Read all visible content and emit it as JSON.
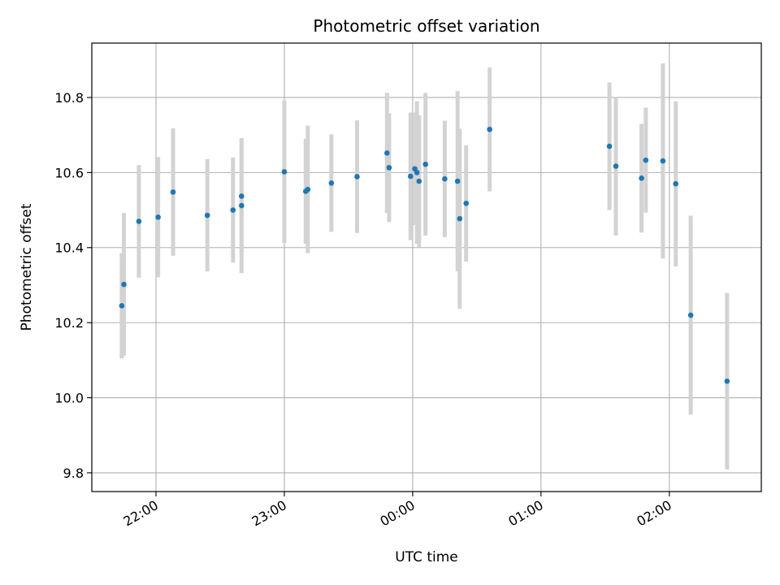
{
  "chart_data": {
    "type": "scatter",
    "title": "Photometric offset variation",
    "xlabel": "UTC time",
    "ylabel": "Photometric offset",
    "x_axis": "time",
    "xlim": [
      "21:30",
      "02:43"
    ],
    "ylim": [
      9.75,
      10.945
    ],
    "xticks": [
      "22:00",
      "23:00",
      "00:00",
      "01:00",
      "02:00"
    ],
    "yticks": [
      "9.8",
      "10.0",
      "10.2",
      "10.4",
      "10.6",
      "10.8"
    ],
    "grid": true,
    "legend": "none",
    "marker_color": "#1f77b4",
    "errorbar_color": "#d3d3d3",
    "points": [
      {
        "time": "21:44",
        "y": 10.245,
        "err": 0.14
      },
      {
        "time": "21:45",
        "y": 10.302,
        "err": 0.19
      },
      {
        "time": "21:52",
        "y": 10.47,
        "err": 0.15
      },
      {
        "time": "22:01",
        "y": 10.481,
        "err": 0.16
      },
      {
        "time": "22:08",
        "y": 10.548,
        "err": 0.17
      },
      {
        "time": "22:24",
        "y": 10.486,
        "err": 0.15
      },
      {
        "time": "22:36",
        "y": 10.5,
        "err": 0.14
      },
      {
        "time": "22:40",
        "y": 10.512,
        "err": 0.18
      },
      {
        "time": "22:40",
        "y": 10.537,
        "err": 0.15
      },
      {
        "time": "23:00",
        "y": 10.602,
        "err": 0.19
      },
      {
        "time": "23:10",
        "y": 10.55,
        "err": 0.14
      },
      {
        "time": "23:11",
        "y": 10.555,
        "err": 0.17
      },
      {
        "time": "23:22",
        "y": 10.572,
        "err": 0.13
      },
      {
        "time": "23:34",
        "y": 10.589,
        "err": 0.15
      },
      {
        "time": "23:48",
        "y": 10.652,
        "err": 0.16
      },
      {
        "time": "23:49",
        "y": 10.613,
        "err": 0.145
      },
      {
        "time": "23:59",
        "y": 10.59,
        "err": 0.17
      },
      {
        "time": "00:01",
        "y": 10.61,
        "err": 0.15
      },
      {
        "time": "00:02",
        "y": 10.6,
        "err": 0.19
      },
      {
        "time": "00:03",
        "y": 10.577,
        "err": 0.175
      },
      {
        "time": "00:06",
        "y": 10.622,
        "err": 0.19
      },
      {
        "time": "00:15",
        "y": 10.583,
        "err": 0.155
      },
      {
        "time": "00:21",
        "y": 10.577,
        "err": 0.24
      },
      {
        "time": "00:22",
        "y": 10.477,
        "err": 0.24
      },
      {
        "time": "00:25",
        "y": 10.518,
        "err": 0.155
      },
      {
        "time": "00:36",
        "y": 10.715,
        "err": 0.165
      },
      {
        "time": "01:32",
        "y": 10.67,
        "err": 0.17
      },
      {
        "time": "01:35",
        "y": 10.617,
        "err": 0.185
      },
      {
        "time": "01:47",
        "y": 10.585,
        "err": 0.145
      },
      {
        "time": "01:49",
        "y": 10.633,
        "err": 0.14
      },
      {
        "time": "01:57",
        "y": 10.631,
        "err": 0.26
      },
      {
        "time": "02:03",
        "y": 10.57,
        "err": 0.22
      },
      {
        "time": "02:10",
        "y": 10.22,
        "err": 0.265
      },
      {
        "time": "02:27",
        "y": 10.044,
        "err": 0.235
      }
    ]
  }
}
